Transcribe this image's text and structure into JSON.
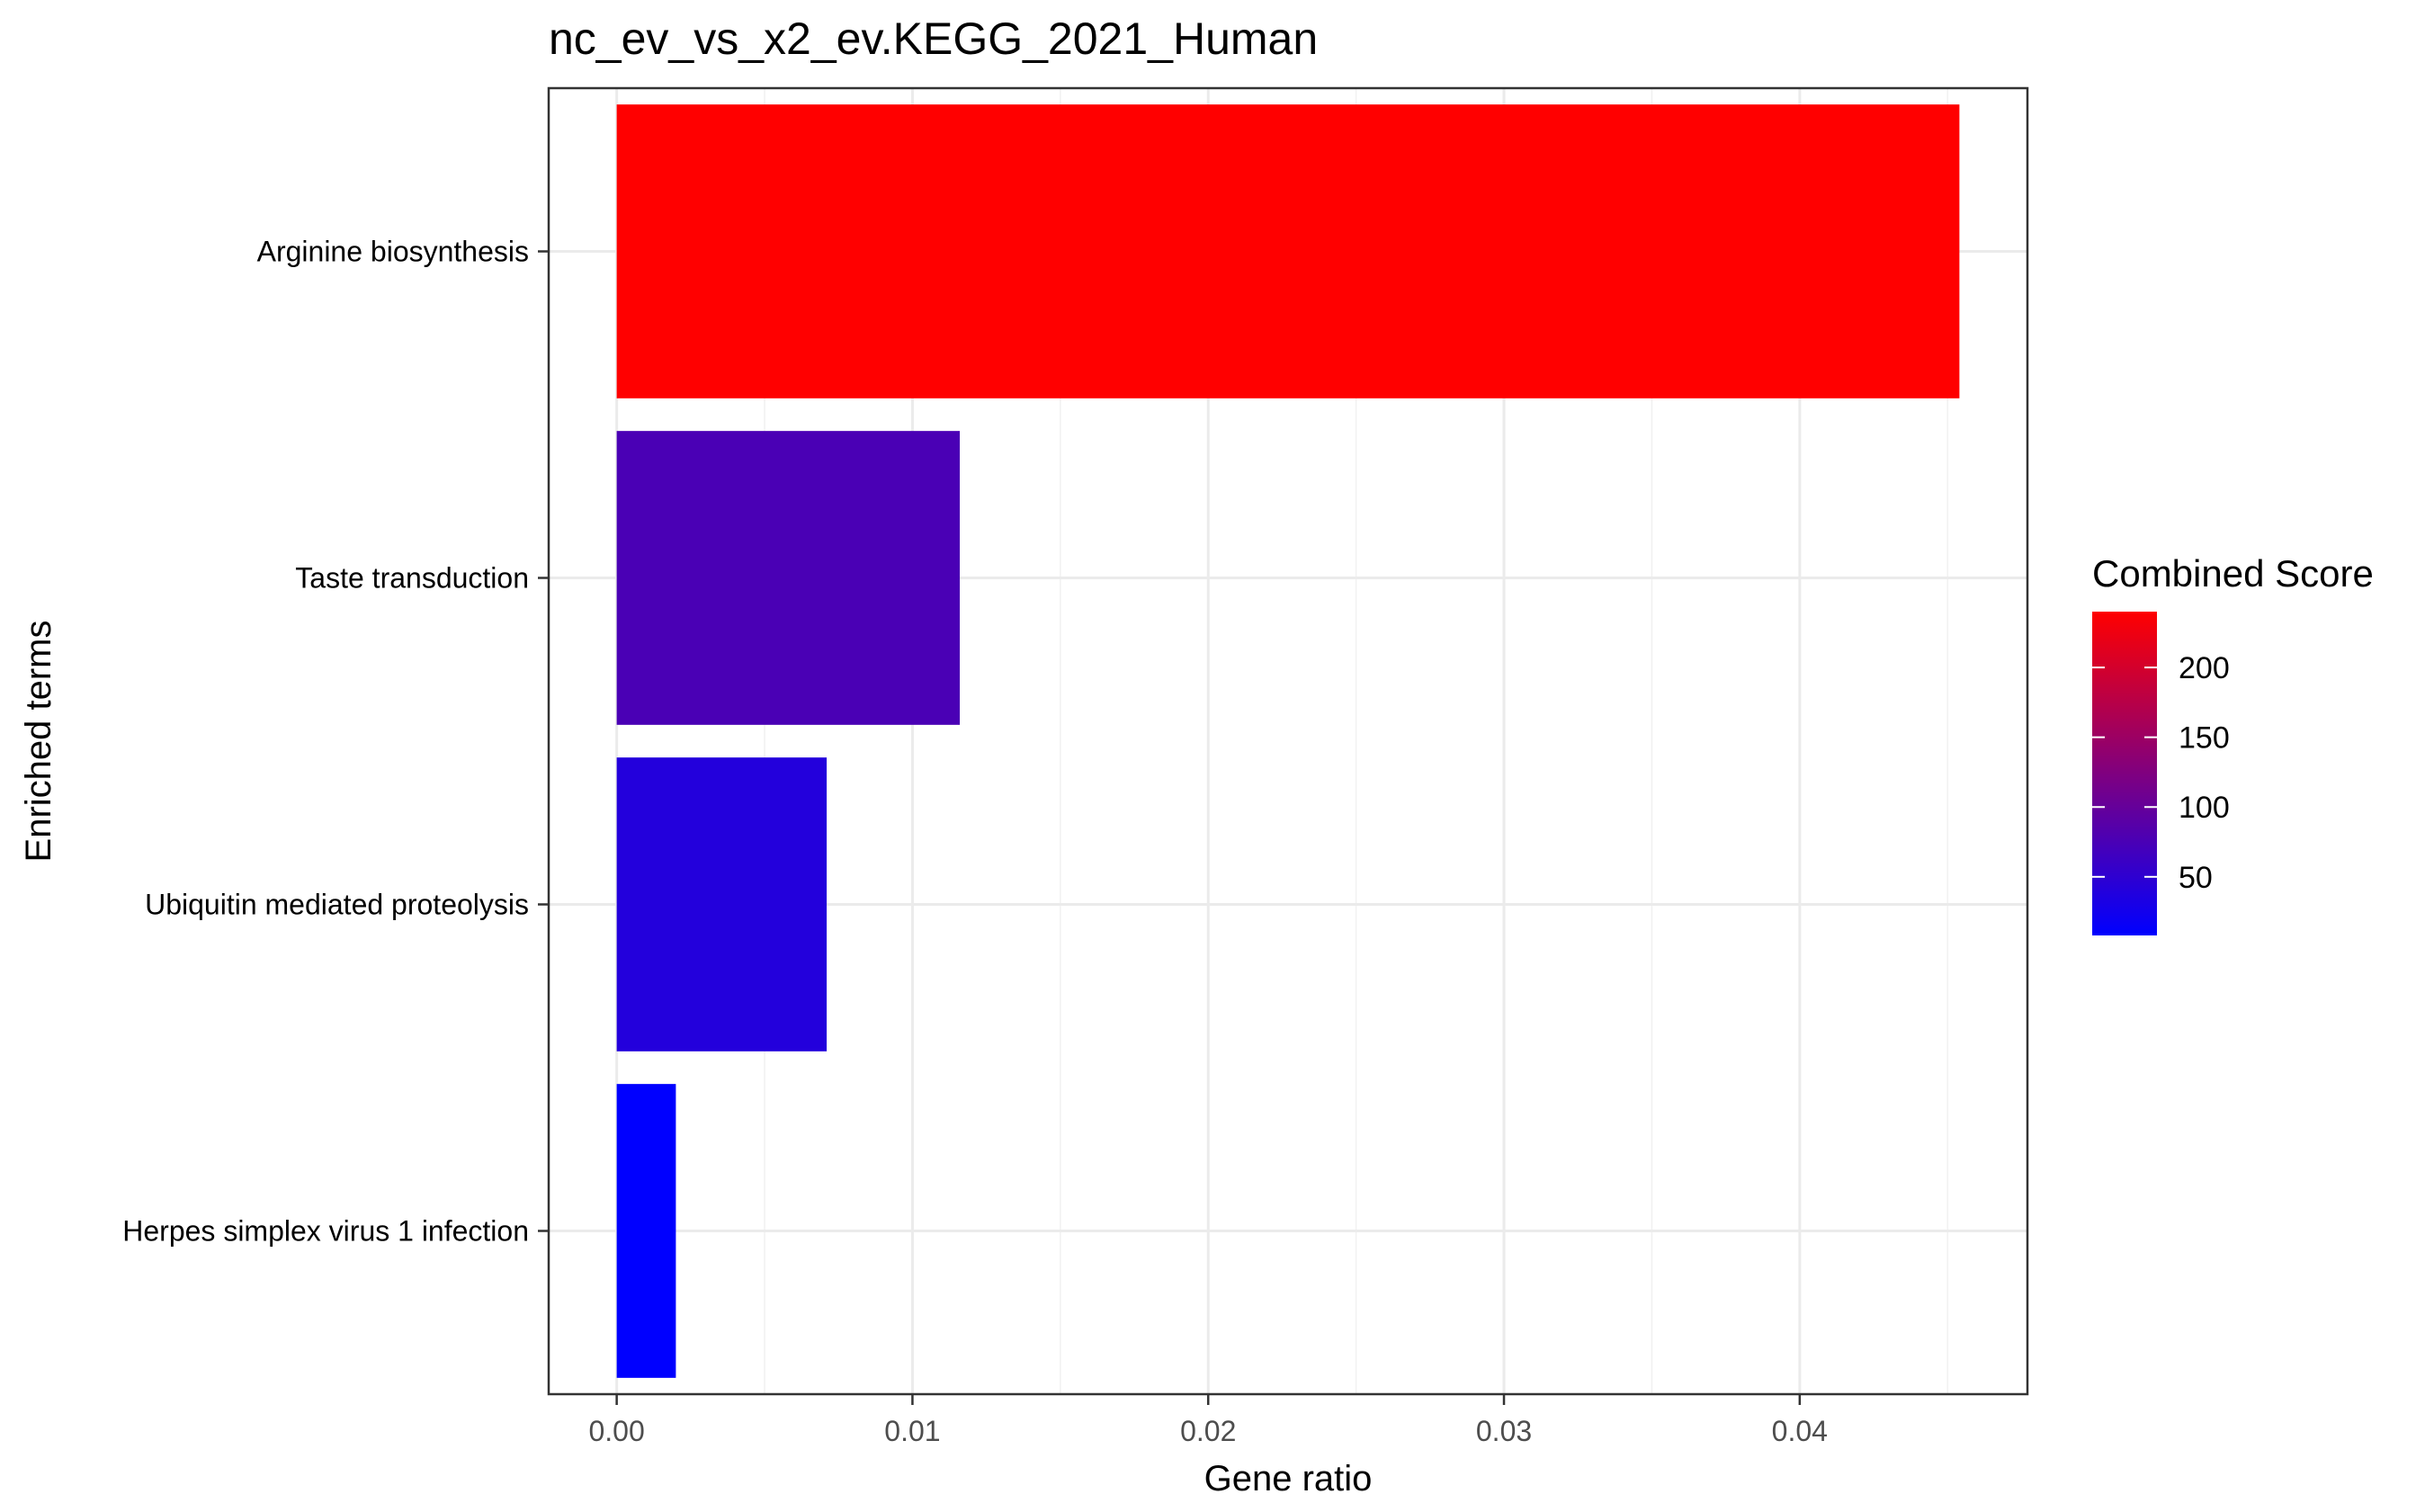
{
  "chart_data": {
    "type": "bar",
    "orientation": "horizontal",
    "title": "nc_ev_vs_x2_ev.KEGG_2021_Human",
    "xlabel": "Gene ratio",
    "ylabel": "Enriched terms",
    "xlim": [
      -0.0023,
      0.0477
    ],
    "xticks": [
      0.0,
      0.01,
      0.02,
      0.03,
      0.04
    ],
    "xtick_labels": [
      "0.00",
      "0.01",
      "0.02",
      "0.03",
      "0.04"
    ],
    "categories": [
      "Arginine biosynthesis",
      "Taste transduction",
      "Ubiquitin mediated proteolysis",
      "Herpes simplex virus 1 infection"
    ],
    "values": [
      0.0454,
      0.0116,
      0.0071,
      0.002
    ],
    "color_values": [
      240,
      75,
      40,
      8
    ],
    "grid": true,
    "legend": {
      "title": "Combined Score",
      "placement": "right",
      "min": 8,
      "max": 240,
      "low_color": "#0000FF",
      "high_color": "#FF0000",
      "ticks": [
        50,
        100,
        150,
        200
      ],
      "tick_labels": [
        "50",
        "100",
        "150",
        "200"
      ]
    }
  }
}
